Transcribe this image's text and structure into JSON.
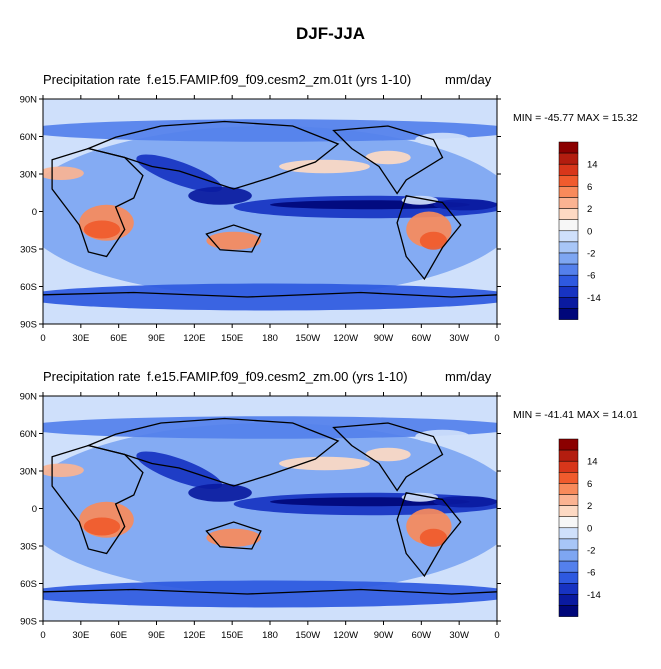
{
  "figure": {
    "title": "DJF-JJA"
  },
  "panels": [
    {
      "title_left": "Precipitation rate",
      "title_case": "f.e15.FAMIP.f09_f09.cesm2_zm.01t (yrs 1-10)",
      "units": "mm/day",
      "minmax": "MIN = -45.77 MAX =  15.32"
    },
    {
      "title_left": "Precipitation rate",
      "title_case": "f.e15.FAMIP.f09_f09.cesm2_zm.00 (yrs 1-10)",
      "units": "mm/day",
      "minmax": "MIN = -41.41 MAX =  14.01"
    }
  ],
  "map": {
    "lat_ticks": [
      "90N",
      "60N",
      "30N",
      "0",
      "30S",
      "60S",
      "90S"
    ],
    "lon_ticks": [
      "0",
      "30E",
      "60E",
      "90E",
      "120E",
      "150E",
      "180",
      "150W",
      "120W",
      "90W",
      "60W",
      "30W",
      "0"
    ]
  },
  "colorbar": {
    "labels": [
      "14",
      "6",
      "2",
      "0",
      "-2",
      "-6",
      "-14"
    ],
    "colors": [
      "#8b0000",
      "#b31d0f",
      "#d8361a",
      "#f05b2d",
      "#f88a5b",
      "#fbb392",
      "#fdd9c3",
      "#f7f7f7",
      "#cfe0fb",
      "#a8c6f7",
      "#7ea6f2",
      "#5480ec",
      "#2e59e0",
      "#1733c2",
      "#0a1aa0",
      "#00077a"
    ]
  }
}
